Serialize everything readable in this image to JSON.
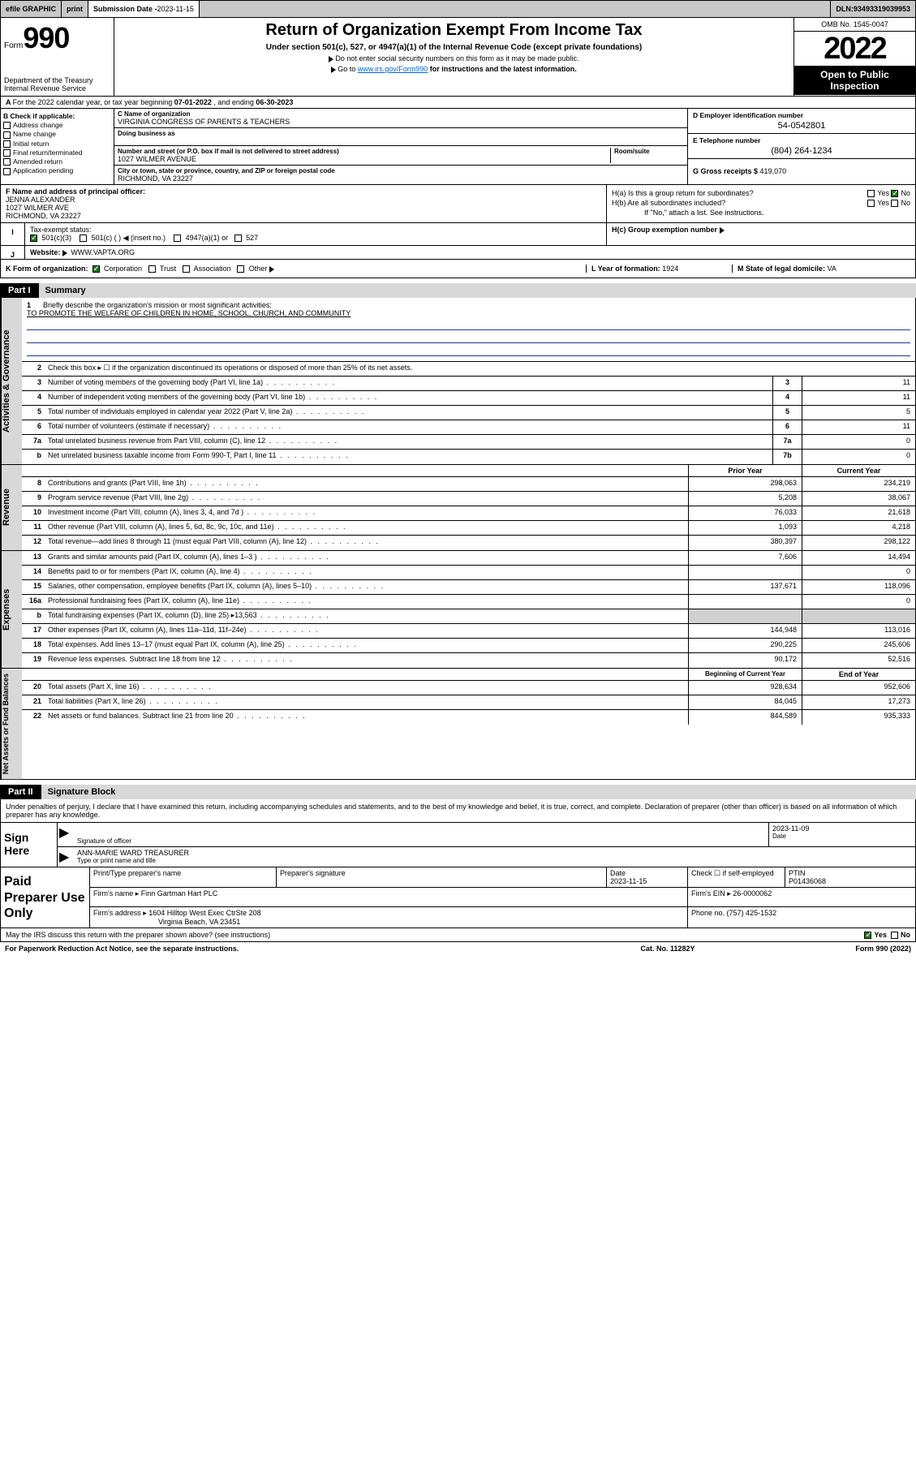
{
  "topbar": {
    "efile": "efile GRAPHIC",
    "print": "print",
    "submission_label": "Submission Date - ",
    "submission_date": "2023-11-15",
    "dln_label": "DLN: ",
    "dln": "93493319039953"
  },
  "header": {
    "form_prefix": "Form",
    "form_num": "990",
    "dept": "Department of the Treasury",
    "irs": "Internal Revenue Service",
    "title": "Return of Organization Exempt From Income Tax",
    "subtitle": "Under section 501(c), 527, or 4947(a)(1) of the Internal Revenue Code (except private foundations)",
    "note1": "Do not enter social security numbers on this form as it may be made public.",
    "note2_pre": "Go to ",
    "note2_link": "www.irs.gov/Form990",
    "note2_post": " for instructions and the latest information.",
    "omb": "OMB No. 1545-0047",
    "year": "2022",
    "open_pub": "Open to Public Inspection"
  },
  "line_a": {
    "text_pre": "For the 2022 calendar year, or tax year beginning ",
    "begin": "07-01-2022",
    "text_mid": " , and ending ",
    "end": "06-30-2023"
  },
  "section_b": {
    "label": "B Check if applicable:",
    "items": [
      "Address change",
      "Name change",
      "Initial return",
      "Final return/terminated",
      "Amended return",
      "Application pending"
    ]
  },
  "section_c": {
    "name_label": "C Name of organization",
    "name": "VIRGINIA CONGRESS OF PARENTS & TEACHERS",
    "dba_label": "Doing business as",
    "dba": "",
    "addr_label": "Number and street (or P.O. box if mail is not delivered to street address)",
    "room_label": "Room/suite",
    "addr": "1027 WILMER AVENUE",
    "city_label": "City or town, state or province, country, and ZIP or foreign postal code",
    "city": "RICHMOND, VA  23227"
  },
  "section_d": {
    "ein_label": "D Employer identification number",
    "ein": "54-0542801",
    "tel_label": "E Telephone number",
    "tel": "(804) 264-1234",
    "gross_label": "G Gross receipts $ ",
    "gross": "419,070"
  },
  "section_f": {
    "label": "F Name and address of principal officer:",
    "name": "JENNA ALEXANDER",
    "addr1": "1027 WILMER AVE",
    "addr2": "RICHMOND, VA  23227"
  },
  "section_h": {
    "ha_label": "H(a)  Is this a group return for subordinates?",
    "hb_label": "H(b)  Are all subordinates included?",
    "hb_note": "If \"No,\" attach a list. See instructions.",
    "hc_label": "H(c)  Group exemption number ",
    "yes": "Yes",
    "no": "No"
  },
  "section_i": {
    "label": "Tax-exempt status:",
    "opt1": "501(c)(3)",
    "opt2": "501(c) (   )",
    "opt2_note": "(insert no.)",
    "opt3": "4947(a)(1) or",
    "opt4": "527"
  },
  "section_j": {
    "label": "Website: ",
    "val": "WWW.VAPTA.ORG"
  },
  "section_k": {
    "label": "K Form of organization:",
    "opts": [
      "Corporation",
      "Trust",
      "Association",
      "Other"
    ],
    "l_label": "L Year of formation: ",
    "l_val": "1924",
    "m_label": "M State of legal domicile: ",
    "m_val": "VA"
  },
  "part1": {
    "tag": "Part I",
    "title": "Summary",
    "q1": "Briefly describe the organization's mission or most significant activities:",
    "mission": "TO PROMOTE THE WELFARE OF CHILDREN IN HOME, SCHOOL, CHURCH, AND COMMUNITY",
    "q2": "Check this box ▸ ☐  if the organization discontinued its operations or disposed of more than 25% of its net assets.",
    "rows_gov": [
      {
        "n": "3",
        "d": "Number of voting members of the governing body (Part VI, line 1a)",
        "box": "3",
        "v": "11"
      },
      {
        "n": "4",
        "d": "Number of independent voting members of the governing body (Part VI, line 1b)",
        "box": "4",
        "v": "11"
      },
      {
        "n": "5",
        "d": "Total number of individuals employed in calendar year 2022 (Part V, line 2a)",
        "box": "5",
        "v": "5"
      },
      {
        "n": "6",
        "d": "Total number of volunteers (estimate if necessary)",
        "box": "6",
        "v": "11"
      },
      {
        "n": "7a",
        "d": "Total unrelated business revenue from Part VIII, column (C), line 12",
        "box": "7a",
        "v": "0"
      },
      {
        "n": "b",
        "d": "Net unrelated business taxable income from Form 990-T, Part I, line 11",
        "box": "7b",
        "v": "0"
      }
    ],
    "col_hdr1": "Prior Year",
    "col_hdr2": "Current Year",
    "col_hdr3": "Beginning of Current Year",
    "col_hdr4": "End of Year",
    "rows_rev": [
      {
        "n": "8",
        "d": "Contributions and grants (Part VIII, line 1h)",
        "v1": "298,063",
        "v2": "234,219"
      },
      {
        "n": "9",
        "d": "Program service revenue (Part VIII, line 2g)",
        "v1": "5,208",
        "v2": "38,067"
      },
      {
        "n": "10",
        "d": "Investment income (Part VIII, column (A), lines 3, 4, and 7d )",
        "v1": "76,033",
        "v2": "21,618"
      },
      {
        "n": "11",
        "d": "Other revenue (Part VIII, column (A), lines 5, 6d, 8c, 9c, 10c, and 11e)",
        "v1": "1,093",
        "v2": "4,218"
      },
      {
        "n": "12",
        "d": "Total revenue—add lines 8 through 11 (must equal Part VIII, column (A), line 12)",
        "v1": "380,397",
        "v2": "298,122"
      }
    ],
    "rows_exp": [
      {
        "n": "13",
        "d": "Grants and similar amounts paid (Part IX, column (A), lines 1–3 )",
        "v1": "7,606",
        "v2": "14,494"
      },
      {
        "n": "14",
        "d": "Benefits paid to or for members (Part IX, column (A), line 4)",
        "v1": "",
        "v2": "0"
      },
      {
        "n": "15",
        "d": "Salaries, other compensation, employee benefits (Part IX, column (A), lines 5–10)",
        "v1": "137,671",
        "v2": "118,096"
      },
      {
        "n": "16a",
        "d": "Professional fundraising fees (Part IX, column (A), line 11e)",
        "v1": "",
        "v2": "0"
      },
      {
        "n": "b",
        "d": "Total fundraising expenses (Part IX, column (D), line 25) ▸13,563",
        "v1": "shaded",
        "v2": "shaded"
      },
      {
        "n": "17",
        "d": "Other expenses (Part IX, column (A), lines 11a–11d, 11f–24e)",
        "v1": "144,948",
        "v2": "113,016"
      },
      {
        "n": "18",
        "d": "Total expenses. Add lines 13–17 (must equal Part IX, column (A), line 25)",
        "v1": "290,225",
        "v2": "245,606"
      },
      {
        "n": "19",
        "d": "Revenue less expenses. Subtract line 18 from line 12",
        "v1": "90,172",
        "v2": "52,516"
      }
    ],
    "rows_net": [
      {
        "n": "20",
        "d": "Total assets (Part X, line 16)",
        "v1": "928,634",
        "v2": "952,606"
      },
      {
        "n": "21",
        "d": "Total liabilities (Part X, line 26)",
        "v1": "84,045",
        "v2": "17,273"
      },
      {
        "n": "22",
        "d": "Net assets or fund balances. Subtract line 21 from line 20",
        "v1": "844,589",
        "v2": "935,333"
      }
    ],
    "vtabs": [
      "Activities & Governance",
      "Revenue",
      "Expenses",
      "Net Assets or Fund Balances"
    ]
  },
  "part2": {
    "tag": "Part II",
    "title": "Signature Block",
    "intro": "Under penalties of perjury, I declare that I have examined this return, including accompanying schedules and statements, and to the best of my knowledge and belief, it is true, correct, and complete. Declaration of preparer (other than officer) is based on all information of which preparer has any knowledge.",
    "sign_here": "Sign Here",
    "sig_officer_lbl": "Signature of officer",
    "sig_date": "2023-11-09",
    "date_lbl": "Date",
    "officer_name": "ANN-MARIE WARD  TREASURER",
    "officer_name_lbl": "Type or print name and title",
    "paid": "Paid Preparer Use Only",
    "prep_name_lbl": "Print/Type preparer's name",
    "prep_sig_lbl": "Preparer's signature",
    "prep_date_lbl": "Date",
    "prep_date": "2023-11-15",
    "self_emp": "Check ☐ if self-employed",
    "ptin_lbl": "PTIN",
    "ptin": "P01436068",
    "firm_name_lbl": "Firm's name   ▸ ",
    "firm_name": "Finn Gartman Hart PLC",
    "firm_ein_lbl": "Firm's EIN ▸ ",
    "firm_ein": "26-0000062",
    "firm_addr_lbl": "Firm's address ▸ ",
    "firm_addr1": "1604 Hilltop West Exec CtrSte 208",
    "firm_addr2": "Virginia Beach, VA  23451",
    "firm_phone_lbl": "Phone no. ",
    "firm_phone": "(757) 425-1532"
  },
  "footer": {
    "q": "May the IRS discuss this return with the preparer shown above? (see instructions)",
    "yes": "Yes",
    "no": "No",
    "pra": "For Paperwork Reduction Act Notice, see the separate instructions.",
    "cat": "Cat. No. 11282Y",
    "form": "Form 990 (2022)"
  },
  "colors": {
    "link": "#0066cc",
    "check_green": "#1a7a1a",
    "shade": "#d0d0d0",
    "tab_bg": "#d8d8d8",
    "underline_blue": "#1a3a8a"
  }
}
